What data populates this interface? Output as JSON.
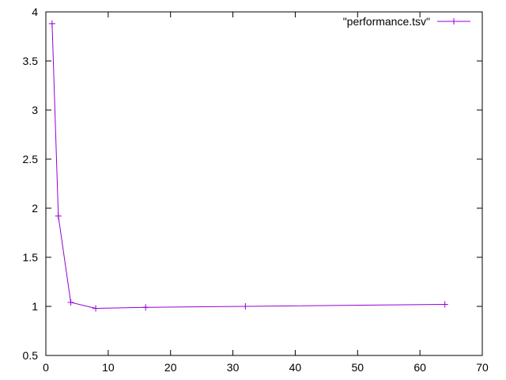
{
  "chart_data": {
    "type": "line",
    "title": "",
    "xlabel": "",
    "ylabel": "",
    "xlim": [
      0,
      70
    ],
    "ylim": [
      0.5,
      4
    ],
    "x_ticks": [
      0,
      10,
      20,
      30,
      40,
      50,
      60,
      70
    ],
    "x_tick_labels": [
      "0",
      "10",
      "20",
      "30",
      "40",
      "50",
      "60",
      "70"
    ],
    "y_ticks": [
      0.5,
      1,
      1.5,
      2,
      2.5,
      3,
      3.5,
      4
    ],
    "y_tick_labels": [
      "0.5",
      "1",
      "1.5",
      "2",
      "2.5",
      "3",
      "3.5",
      "4"
    ],
    "grid": false,
    "legend_position": "top-right",
    "series": [
      {
        "name": "\"performance.tsv\"",
        "color": "#9400d3",
        "marker": "plus",
        "x": [
          1,
          2,
          4,
          8,
          16,
          32,
          64
        ],
        "y": [
          3.88,
          1.92,
          1.04,
          0.98,
          0.99,
          1.0,
          1.02
        ]
      }
    ]
  }
}
